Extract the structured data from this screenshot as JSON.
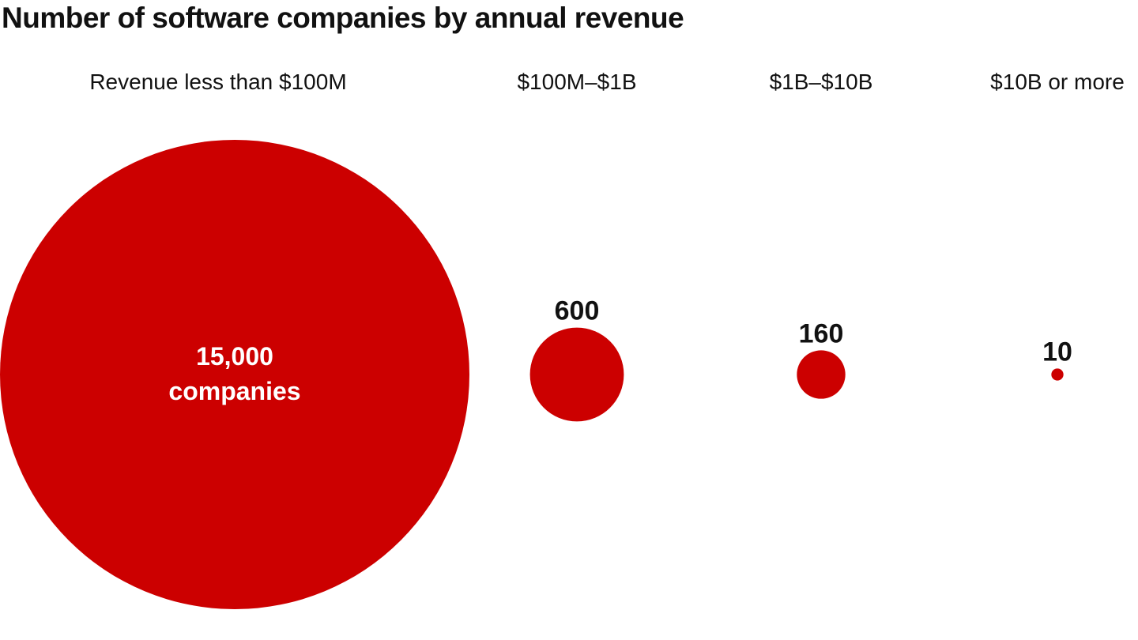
{
  "chart_data": {
    "type": "bubble",
    "title": "Number of software companies by annual revenue",
    "categories": [
      "Revenue less than $100M",
      "$100M–$1B",
      "$1B–$10B",
      "$10B or more"
    ],
    "values": [
      15000,
      600,
      160,
      10
    ],
    "value_labels": [
      "15,000",
      "600",
      "160",
      "10"
    ],
    "largest_label_line2": "companies",
    "bubble_color": "#cc0000",
    "xlabel": "",
    "ylabel": "",
    "legend": "none",
    "grid": false
  }
}
